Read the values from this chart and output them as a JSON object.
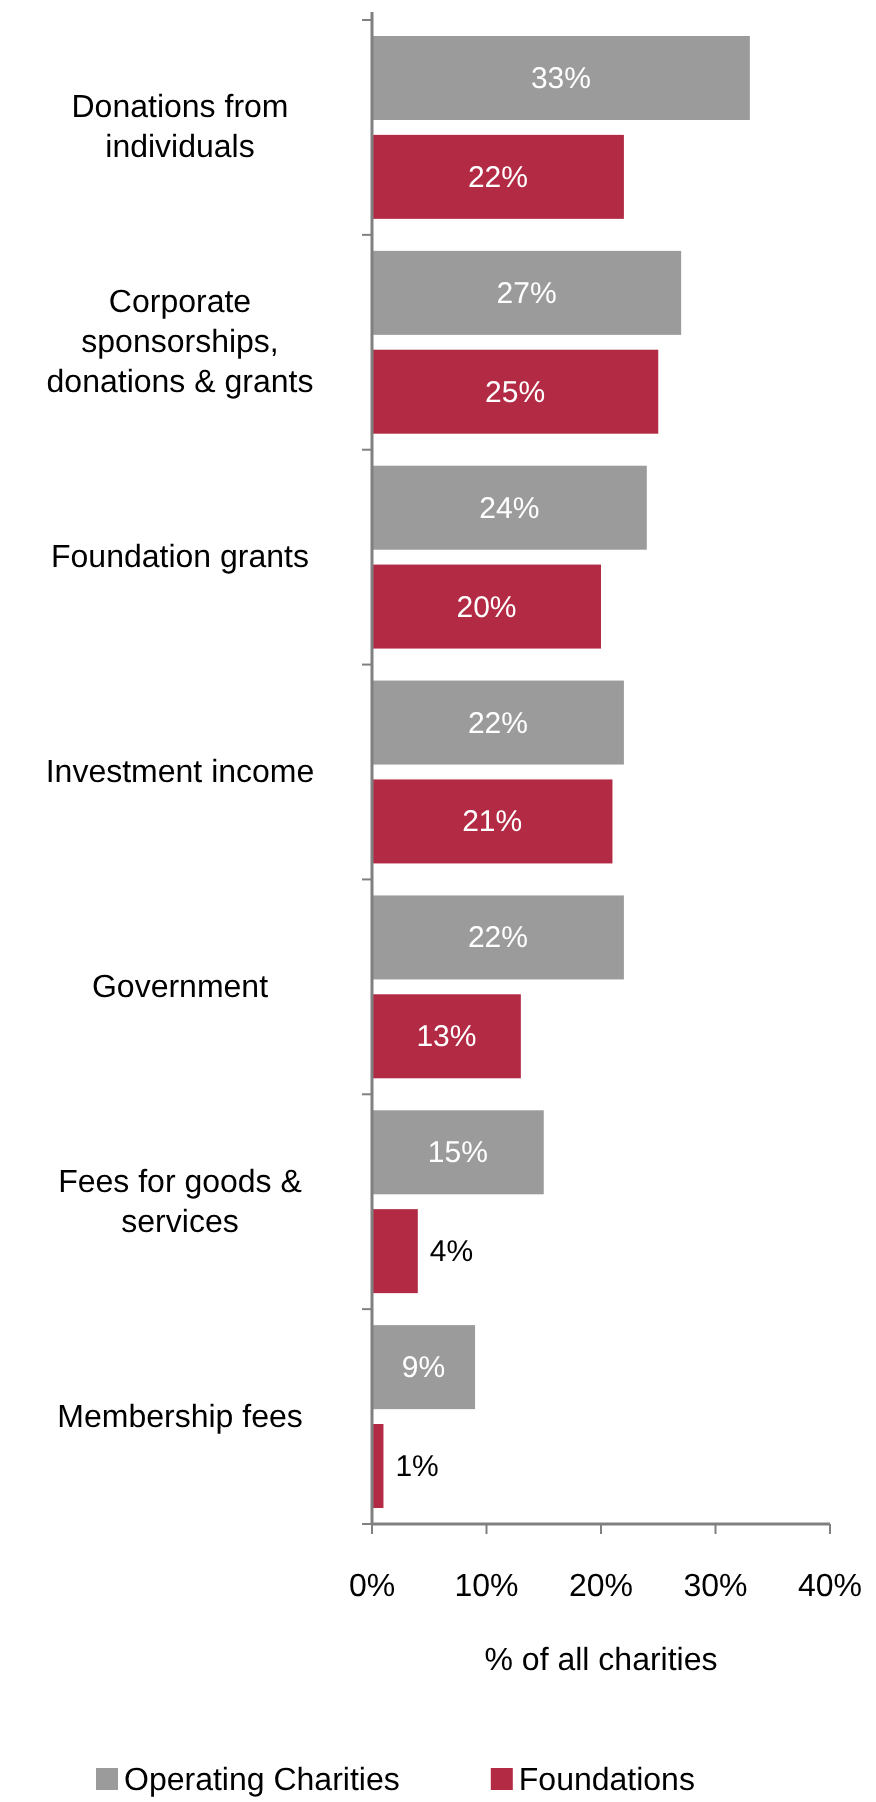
{
  "chart_data": {
    "type": "bar",
    "orientation": "horizontal",
    "xlabel": "% of all charities",
    "categories": [
      "Donations from individuals",
      "Corporate sponsorships, donations & grants",
      "Foundation grants",
      "Investment income",
      "Government",
      "Fees for goods & services",
      "Membership fees"
    ],
    "series": [
      {
        "name": "Operating Charities",
        "color": "#9b9b9b",
        "values": [
          33,
          27,
          24,
          22,
          22,
          15,
          9
        ],
        "value_labels": [
          "33%",
          "27%",
          "24%",
          "22%",
          "22%",
          "15%",
          "9%"
        ]
      },
      {
        "name": "Foundations",
        "color": "#b22a44",
        "values": [
          22,
          25,
          20,
          21,
          13,
          4,
          1
        ],
        "value_labels": [
          "22%",
          "25%",
          "20%",
          "21%",
          "13%",
          "4%",
          "1%"
        ]
      }
    ],
    "xlim": [
      0,
      40
    ],
    "xticks": [
      {
        "value": 0,
        "label": "0%"
      },
      {
        "value": 10,
        "label": "10%"
      },
      {
        "value": 20,
        "label": "20%"
      },
      {
        "value": 30,
        "label": "30%"
      },
      {
        "value": 40,
        "label": "40%"
      }
    ],
    "grid": false,
    "legend": "bottom"
  }
}
